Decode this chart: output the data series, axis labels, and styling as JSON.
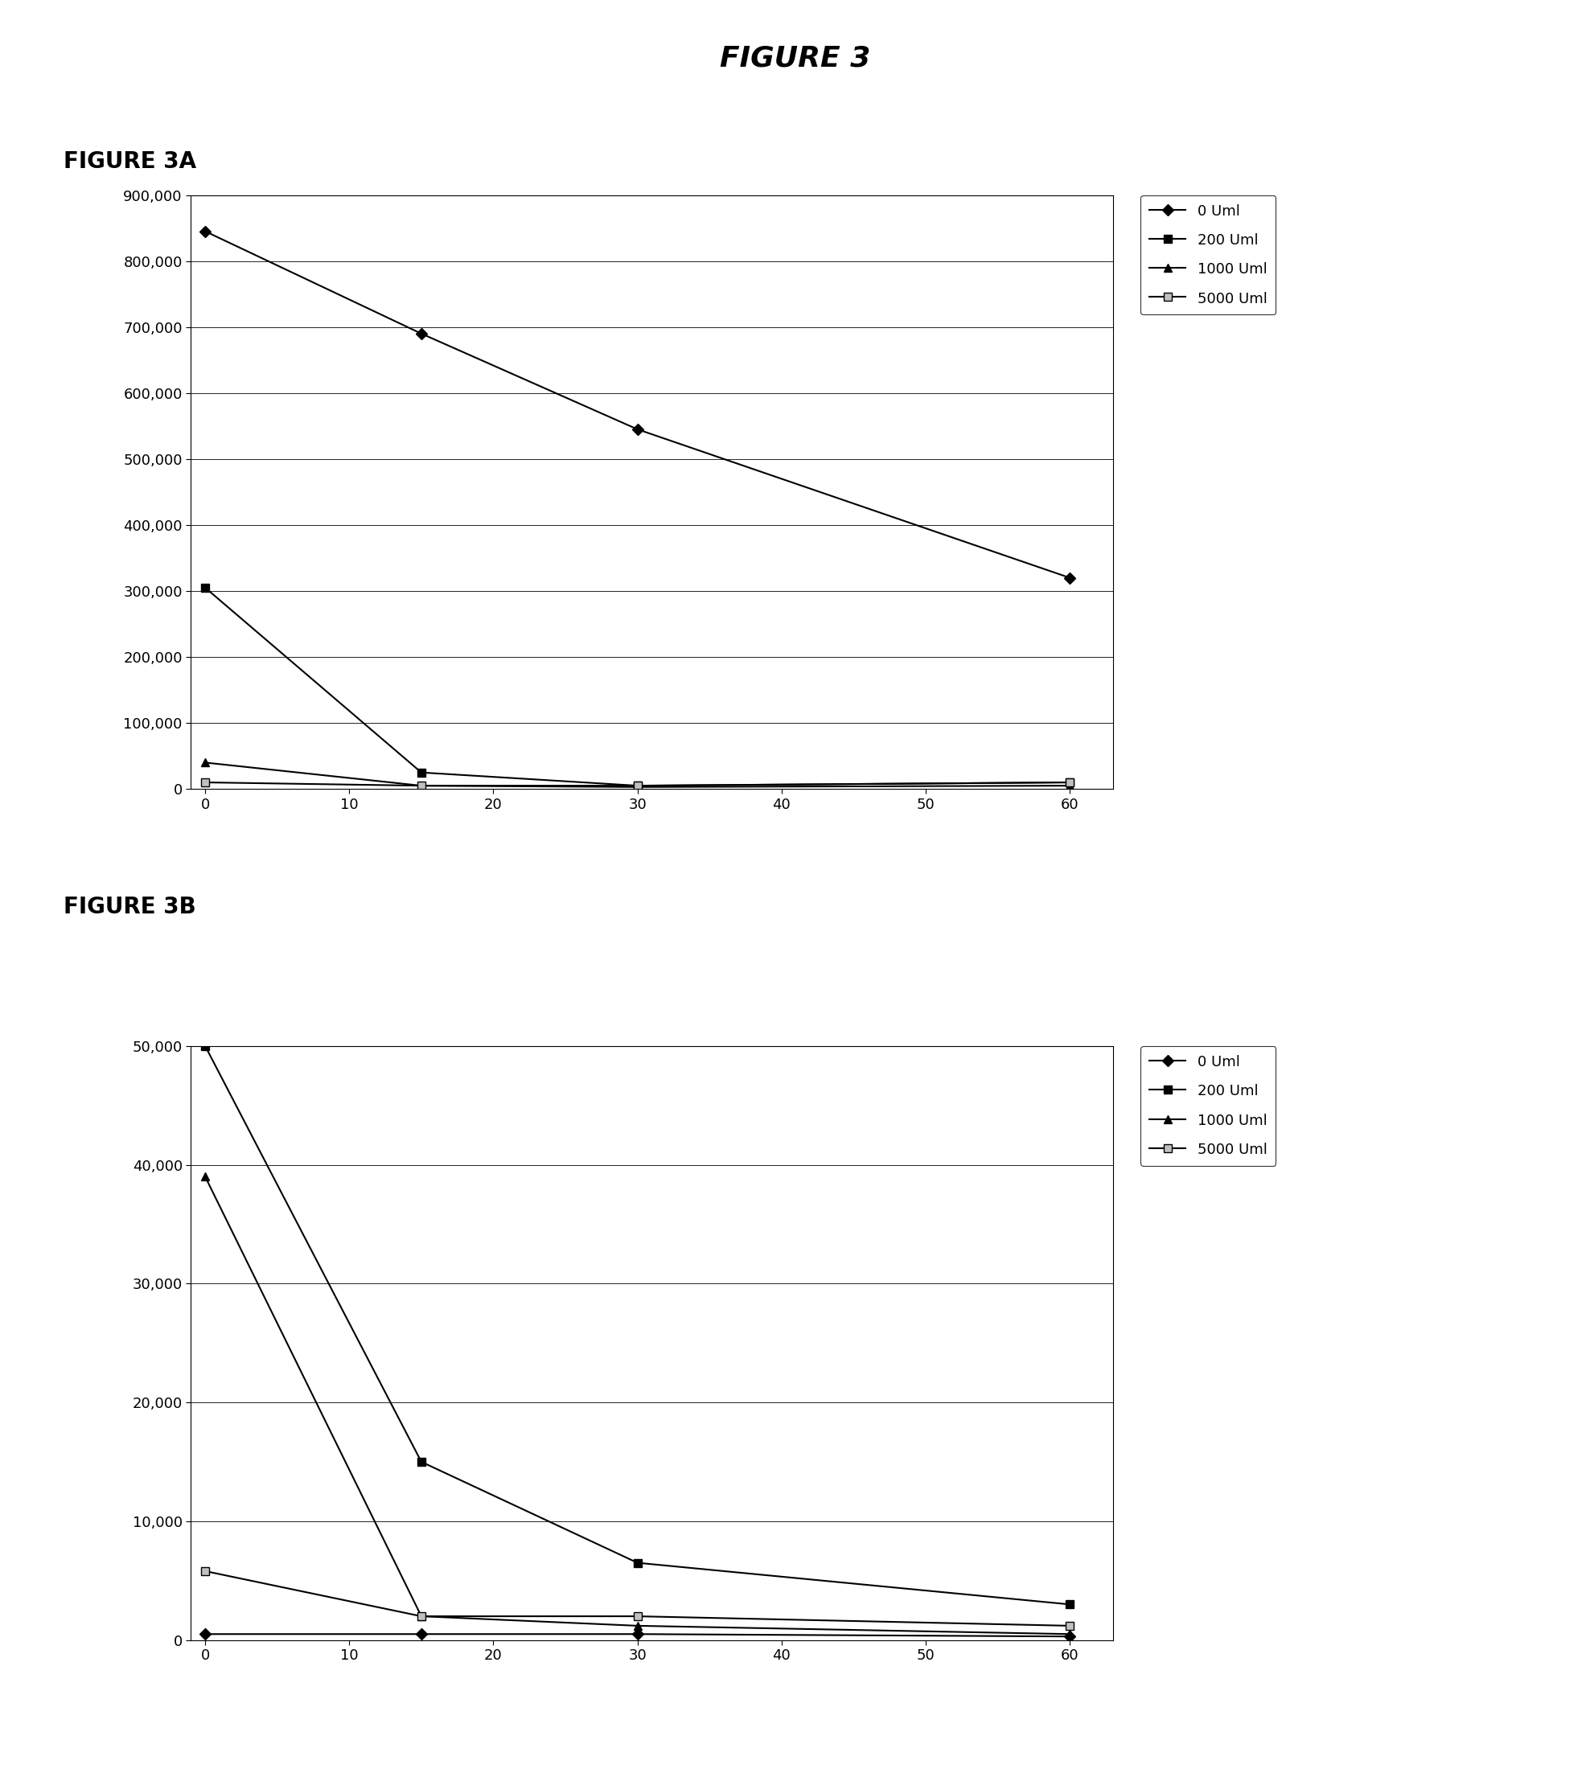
{
  "title": "FIGURE 3",
  "fig3a_label": "FIGURE 3A",
  "fig3b_label": "FIGURE 3B",
  "x": [
    0,
    15,
    30,
    60
  ],
  "fig3a": {
    "series": [
      {
        "label": "0 Uml",
        "marker": "D",
        "y": [
          845000,
          690000,
          545000,
          320000
        ]
      },
      {
        "label": "200 Uml",
        "marker": "s",
        "y": [
          305000,
          25000,
          5000,
          10000
        ]
      },
      {
        "label": "1000 Uml",
        "marker": "^",
        "y": [
          40000,
          5000,
          3000,
          5000
        ]
      },
      {
        "label": "5000 Uml",
        "marker": "s",
        "y": [
          10000,
          5000,
          5000,
          10000
        ]
      }
    ],
    "ylim": [
      0,
      900000
    ],
    "yticks": [
      0,
      100000,
      200000,
      300000,
      400000,
      500000,
      600000,
      700000,
      800000,
      900000
    ],
    "ytick_labels": [
      "0",
      "100,000",
      "200,000",
      "300,000",
      "400,000",
      "500,000",
      "600,000",
      "700,000",
      "800,000",
      "900,000"
    ],
    "xticks": [
      0,
      10,
      20,
      30,
      40,
      50,
      60
    ],
    "xlim": [
      -1,
      63
    ]
  },
  "fig3b": {
    "series": [
      {
        "label": "0 Uml",
        "marker": "D",
        "y": [
          500,
          500,
          500,
          300
        ]
      },
      {
        "label": "200 Uml",
        "marker": "s",
        "y": [
          50000,
          15000,
          6500,
          3000
        ]
      },
      {
        "label": "1000 Uml",
        "marker": "^",
        "y": [
          39000,
          2000,
          1200,
          500
        ]
      },
      {
        "label": "5000 Uml",
        "marker": "s",
        "y": [
          5800,
          2000,
          2000,
          1200
        ]
      }
    ],
    "ylim": [
      0,
      50000
    ],
    "yticks": [
      0,
      10000,
      20000,
      30000,
      40000,
      50000
    ],
    "ytick_labels": [
      "0",
      "10,000",
      "20,000",
      "30,000",
      "40,000",
      "50,000"
    ],
    "xticks": [
      0,
      10,
      20,
      30,
      40,
      50,
      60
    ],
    "xlim": [
      -1,
      63
    ]
  },
  "line_color": "#000000",
  "marker_size": 7,
  "marker_fill_colors": [
    "#000000",
    "#000000",
    "#000000",
    "#c0c0c0"
  ],
  "markers": [
    "D",
    "s",
    "^",
    "s"
  ],
  "legend_labels": [
    "0 Uml",
    "200 Uml",
    "1000 Uml",
    "5000 Uml"
  ]
}
